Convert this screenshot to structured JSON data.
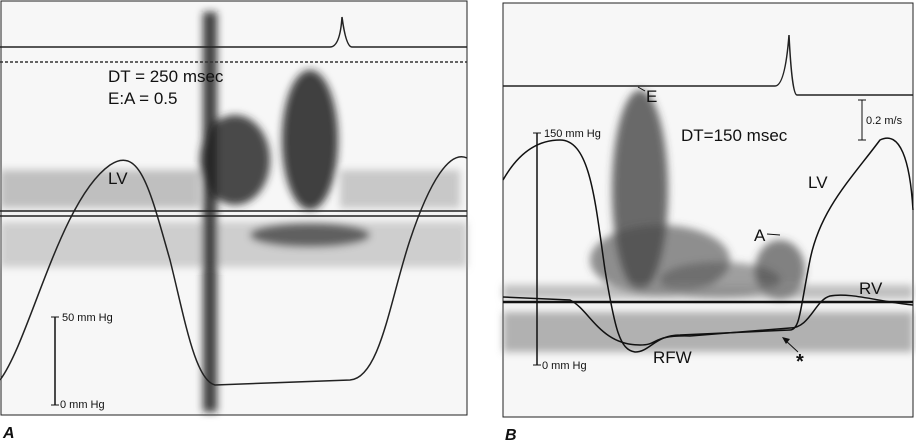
{
  "panel_a": {
    "letter": "A",
    "dt_label": "DT = 250 msec",
    "ratio_label": "E:A = 0.5",
    "lv_label": "LV",
    "scale_top_label": "50 mm Hg",
    "scale_bottom_label": "0 mm Hg"
  },
  "panel_b": {
    "letter": "B",
    "dt_label": "DT=150 msec",
    "e_label": "E",
    "a_label": "A",
    "lv_label": "LV",
    "rv_label": "RV",
    "rfw_label": "RFW",
    "star_label": "*",
    "velocity_scale_label": "0.2 m/s",
    "scale_top_label": "150 mm Hg",
    "scale_bottom_label": "0 mm Hg"
  }
}
